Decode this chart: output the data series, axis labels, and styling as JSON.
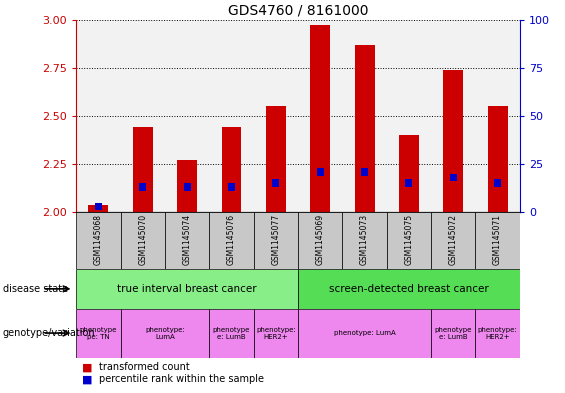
{
  "title": "GDS4760 / 8161000",
  "samples": [
    "GSM1145068",
    "GSM1145070",
    "GSM1145074",
    "GSM1145076",
    "GSM1145077",
    "GSM1145069",
    "GSM1145073",
    "GSM1145075",
    "GSM1145072",
    "GSM1145071"
  ],
  "red_values": [
    2.04,
    2.44,
    2.27,
    2.44,
    2.55,
    2.97,
    2.87,
    2.4,
    2.74,
    2.55
  ],
  "blue_percentile": [
    3,
    13,
    13,
    13,
    15,
    21,
    21,
    15,
    18,
    15
  ],
  "ylim_left": [
    2.0,
    3.0
  ],
  "ylim_right": [
    0,
    100
  ],
  "yticks_left": [
    2.0,
    2.25,
    2.5,
    2.75,
    3.0
  ],
  "yticks_right": [
    0,
    25,
    50,
    75,
    100
  ],
  "disease_state_groups": [
    {
      "label": "true interval breast cancer",
      "start": 0,
      "end": 4,
      "color": "#88ee88"
    },
    {
      "label": "screen-detected breast cancer",
      "start": 5,
      "end": 9,
      "color": "#55dd55"
    }
  ],
  "genotype_groups": [
    {
      "label": "phenotype\npe: TN",
      "start": 0,
      "end": 0,
      "color": "#ee88ee"
    },
    {
      "label": "phenotype:\nLumA",
      "start": 1,
      "end": 2,
      "color": "#ee88ee"
    },
    {
      "label": "phenotype\ne: LumB",
      "start": 3,
      "end": 3,
      "color": "#ee88ee"
    },
    {
      "label": "phenotype:\nHER2+",
      "start": 4,
      "end": 4,
      "color": "#ee88ee"
    },
    {
      "label": "phenotype: LumA",
      "start": 5,
      "end": 7,
      "color": "#ee88ee"
    },
    {
      "label": "phenotype\ne: LumB",
      "start": 8,
      "end": 8,
      "color": "#ee88ee"
    },
    {
      "label": "phenotype:\nHER2+",
      "start": 9,
      "end": 9,
      "color": "#ee88ee"
    }
  ],
  "bar_color": "#cc0000",
  "blue_color": "#0000cc",
  "background_color": "#ffffff",
  "left_axis_color": "#cc0000",
  "right_axis_color": "#0000cc",
  "chart_bg": "#f2f2f2",
  "sample_box_color": "#c8c8c8",
  "title_fontsize": 10,
  "bar_width": 0.45
}
